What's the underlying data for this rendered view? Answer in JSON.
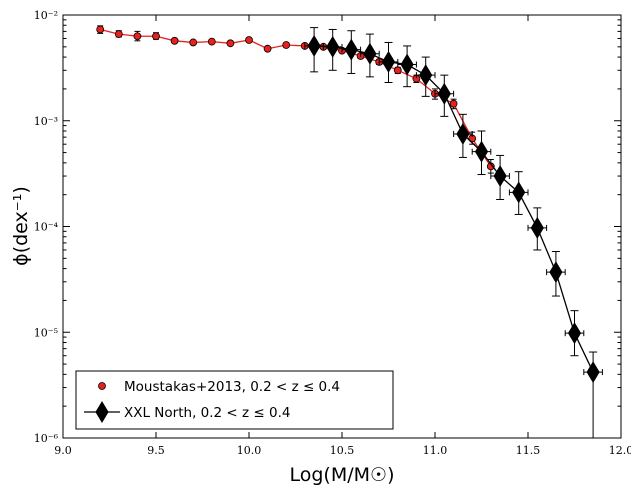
{
  "chart_data": {
    "type": "scatter",
    "title": "",
    "xlabel": "Log(M/M☉)",
    "ylabel": "ϕ(dex⁻¹)",
    "xlim": [
      9.0,
      12.0
    ],
    "ylim_log10": [
      -6,
      -2
    ],
    "yscale": "log",
    "x_ticks": [
      "9.0",
      "9.5",
      "10.0",
      "10.5",
      "11.0",
      "11.5",
      "12.0"
    ],
    "y_ticks": [
      {
        "exp": -6,
        "label": "10⁻⁶"
      },
      {
        "exp": -5,
        "label": "10⁻⁵"
      },
      {
        "exp": -4,
        "label": "10⁻⁴"
      },
      {
        "exp": -3,
        "label": "10⁻³"
      },
      {
        "exp": -2,
        "label": "10⁻²"
      }
    ],
    "grid": false,
    "legend_position": "lower-left",
    "series": [
      {
        "name": "Moustakas+2013, 0.2 < z ≤ 0.4",
        "color": "#e8211e",
        "marker": "circle",
        "points": [
          {
            "x": 9.2,
            "y": 0.0073,
            "ylo": 0.0067,
            "yhi": 0.0079
          },
          {
            "x": 9.3,
            "y": 0.0066,
            "ylo": 0.0062,
            "yhi": 0.0071
          },
          {
            "x": 9.4,
            "y": 0.0063,
            "ylo": 0.0057,
            "yhi": 0.007
          },
          {
            "x": 9.5,
            "y": 0.0063,
            "ylo": 0.0059,
            "yhi": 0.0068
          },
          {
            "x": 9.6,
            "y": 0.0057,
            "ylo": 0.0055,
            "yhi": 0.0059
          },
          {
            "x": 9.7,
            "y": 0.0055,
            "ylo": 0.0053,
            "yhi": 0.0057
          },
          {
            "x": 9.8,
            "y": 0.0056,
            "ylo": 0.0054,
            "yhi": 0.0058
          },
          {
            "x": 9.9,
            "y": 0.0054,
            "ylo": 0.0052,
            "yhi": 0.0056
          },
          {
            "x": 10.0,
            "y": 0.0058,
            "ylo": 0.0056,
            "yhi": 0.006
          },
          {
            "x": 10.1,
            "y": 0.0048,
            "ylo": 0.0046,
            "yhi": 0.005
          },
          {
            "x": 10.2,
            "y": 0.0052,
            "ylo": 0.005,
            "yhi": 0.0054
          },
          {
            "x": 10.3,
            "y": 0.0051,
            "ylo": 0.0049,
            "yhi": 0.0053
          },
          {
            "x": 10.4,
            "y": 0.005,
            "ylo": 0.0048,
            "yhi": 0.0052
          },
          {
            "x": 10.5,
            "y": 0.0046,
            "ylo": 0.0044,
            "yhi": 0.0048
          },
          {
            "x": 10.6,
            "y": 0.0041,
            "ylo": 0.0039,
            "yhi": 0.0043
          },
          {
            "x": 10.7,
            "y": 0.0036,
            "ylo": 0.0034,
            "yhi": 0.0038
          },
          {
            "x": 10.8,
            "y": 0.003,
            "ylo": 0.0028,
            "yhi": 0.0032
          },
          {
            "x": 10.9,
            "y": 0.0025,
            "ylo": 0.0023,
            "yhi": 0.0027
          },
          {
            "x": 11.0,
            "y": 0.0018,
            "ylo": 0.0016,
            "yhi": 0.002
          },
          {
            "x": 11.1,
            "y": 0.00145,
            "ylo": 0.0013,
            "yhi": 0.0016
          },
          {
            "x": 11.2,
            "y": 0.00068,
            "ylo": 0.0006,
            "yhi": 0.00078
          },
          {
            "x": 11.3,
            "y": 0.00037,
            "ylo": 0.00032,
            "yhi": 0.00043
          }
        ]
      },
      {
        "name": "XXL North, 0.2 < z ≤ 0.4",
        "color": "#000000",
        "marker": "diamond",
        "points": [
          {
            "x": 10.35,
            "y": 0.0051,
            "ylo": 0.0029,
            "yhi": 0.0076,
            "xerr": 0.05
          },
          {
            "x": 10.45,
            "y": 0.005,
            "ylo": 0.003,
            "yhi": 0.0073,
            "xerr": 0.05
          },
          {
            "x": 10.55,
            "y": 0.0047,
            "ylo": 0.0028,
            "yhi": 0.0071,
            "xerr": 0.05
          },
          {
            "x": 10.65,
            "y": 0.0043,
            "ylo": 0.0026,
            "yhi": 0.0066,
            "xerr": 0.05
          },
          {
            "x": 10.75,
            "y": 0.0036,
            "ylo": 0.0023,
            "yhi": 0.0055,
            "xerr": 0.05
          },
          {
            "x": 10.85,
            "y": 0.0034,
            "ylo": 0.0021,
            "yhi": 0.0051,
            "xerr": 0.05
          },
          {
            "x": 10.95,
            "y": 0.0027,
            "ylo": 0.0017,
            "yhi": 0.004,
            "xerr": 0.05
          },
          {
            "x": 11.05,
            "y": 0.0018,
            "ylo": 0.0011,
            "yhi": 0.0027,
            "xerr": 0.05
          },
          {
            "x": 11.15,
            "y": 0.00075,
            "ylo": 0.00045,
            "yhi": 0.00115,
            "xerr": 0.05
          },
          {
            "x": 11.25,
            "y": 0.00051,
            "ylo": 0.00031,
            "yhi": 0.0008,
            "xerr": 0.05
          },
          {
            "x": 11.35,
            "y": 0.0003,
            "ylo": 0.00018,
            "yhi": 0.00047,
            "xerr": 0.05
          },
          {
            "x": 11.45,
            "y": 0.00021,
            "ylo": 0.00013,
            "yhi": 0.00033,
            "xerr": 0.05
          },
          {
            "x": 11.55,
            "y": 9.7e-05,
            "ylo": 6e-05,
            "yhi": 0.00015,
            "xerr": 0.05
          },
          {
            "x": 11.65,
            "y": 3.7e-05,
            "ylo": 2.2e-05,
            "yhi": 5.8e-05,
            "xerr": 0.05
          },
          {
            "x": 11.75,
            "y": 9.8e-06,
            "ylo": 6e-06,
            "yhi": 1.6e-05,
            "xerr": 0.05
          },
          {
            "x": 11.85,
            "y": 4.2e-06,
            "ylo": 1e-06,
            "yhi": 6.5e-06,
            "xerr": 0.05
          }
        ]
      }
    ]
  }
}
